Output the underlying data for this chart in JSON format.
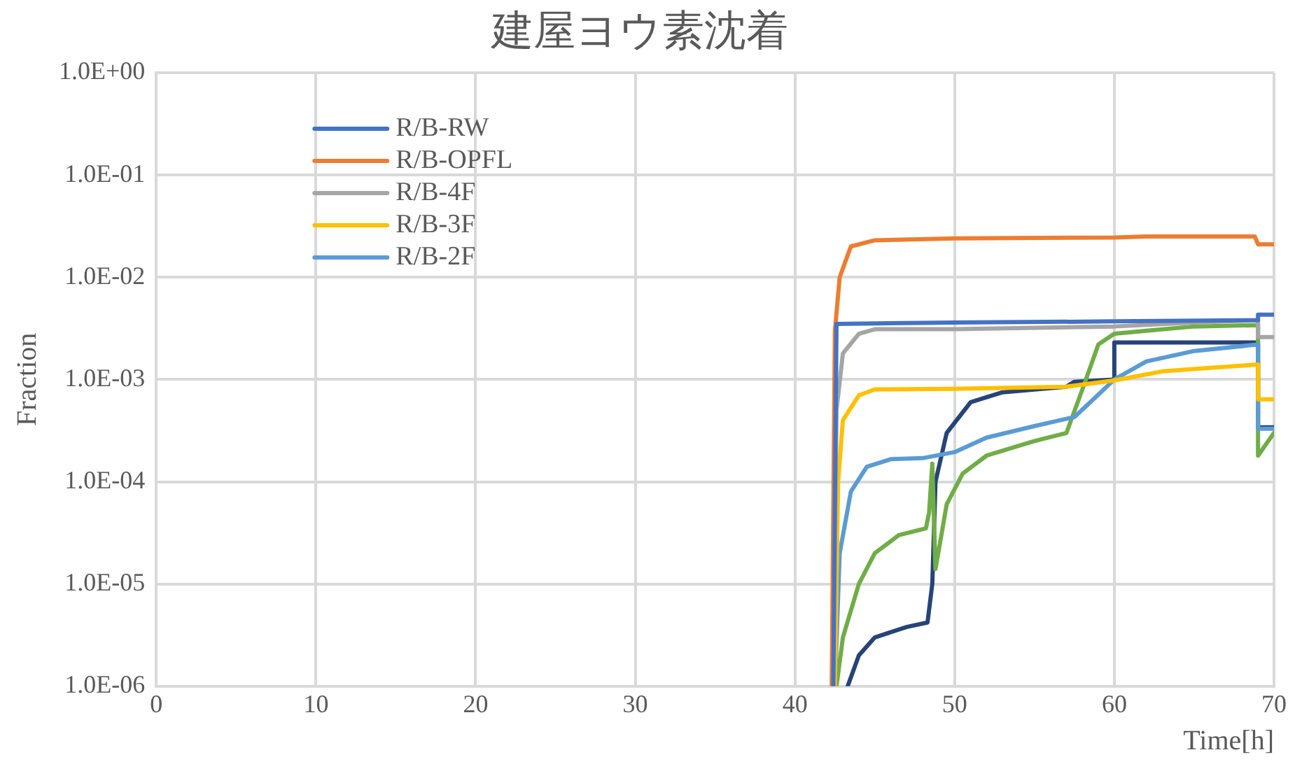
{
  "chart_data": {
    "type": "line",
    "title": "建屋ヨウ素沈着",
    "xlabel": "Time[h]",
    "ylabel": "Fraction",
    "log": "y",
    "grid": true,
    "legend": "top left",
    "marker": "none",
    "line_style": "solid",
    "xlim": [
      0,
      70
    ],
    "xticks": [
      0,
      10,
      20,
      30,
      40,
      50,
      60,
      70
    ],
    "ylim": [
      1e-06,
      1
    ],
    "yticks": [
      {
        "value": 1e-06,
        "label": "1.0E-06"
      },
      {
        "value": 1e-05,
        "label": "1.0E-05"
      },
      {
        "value": 0.0001,
        "label": "1.0E-04"
      },
      {
        "value": 0.001,
        "label": "1.0E-03"
      },
      {
        "value": 0.01,
        "label": "1.0E-02"
      },
      {
        "value": 0.1,
        "label": "1.0E-01"
      },
      {
        "value": 1,
        "label": "1.0E+00"
      }
    ],
    "series": [
      {
        "name": "R/B-RW",
        "color": "#4472c4",
        "x": [
          42.4,
          42.6,
          50,
          60,
          69,
          69,
          70
        ],
        "values": [
          1e-06,
          0.0035,
          0.0036,
          0.0037,
          0.0038,
          0.0043,
          0.0043
        ]
      },
      {
        "name": "R/B-OPFL",
        "color": "#ed7d31",
        "x": [
          42.3,
          42.5,
          42.8,
          43.5,
          45,
          50,
          60,
          62,
          68.8,
          69,
          70
        ],
        "values": [
          1e-06,
          0.003,
          0.01,
          0.02,
          0.023,
          0.024,
          0.0245,
          0.025,
          0.025,
          0.021,
          0.021
        ]
      },
      {
        "name": "R/B-4F",
        "color": "#a5a5a5",
        "x": [
          42.4,
          42.6,
          43,
          44,
          45,
          50,
          60,
          65,
          69,
          69,
          70
        ],
        "values": [
          1e-06,
          0.0005,
          0.0018,
          0.0028,
          0.0031,
          0.0031,
          0.0033,
          0.0036,
          0.0038,
          0.0026,
          0.0026
        ]
      },
      {
        "name": "R/B-3F",
        "color": "#ffc000",
        "x": [
          42.5,
          42.7,
          43,
          44,
          45,
          50,
          57,
          60,
          63,
          66,
          69,
          69,
          70
        ],
        "values": [
          1e-06,
          0.0001,
          0.0004,
          0.0007,
          0.0008,
          0.00081,
          0.00085,
          0.00098,
          0.0012,
          0.0013,
          0.0014,
          0.00064,
          0.00064
        ]
      },
      {
        "name": "R/B-2F",
        "color": "#5b9bd5",
        "x": [
          42.5,
          42.8,
          43.5,
          44.5,
          46,
          48,
          50,
          52,
          55,
          57.5,
          58.5,
          60,
          62,
          65,
          69,
          69,
          70
        ],
        "values": [
          1e-06,
          2e-05,
          8e-05,
          0.00014,
          0.000166,
          0.00017,
          0.000195,
          0.00027,
          0.00035,
          0.00043,
          0.0006,
          0.001,
          0.0015,
          0.0019,
          0.0022,
          0.00033,
          0.00033
        ]
      },
      {
        "color": "#70ad47",
        "x": [
          42.6,
          43,
          44,
          45,
          46.5,
          48.2,
          48.4,
          48.6,
          48.8,
          49.5,
          50.5,
          52,
          55,
          57,
          58,
          59,
          60,
          62,
          65,
          69,
          69,
          70
        ],
        "values": [
          1e-06,
          3e-06,
          1e-05,
          2e-05,
          3e-05,
          3.5e-05,
          5e-05,
          0.00015,
          1.4e-05,
          6e-05,
          0.00012,
          0.00018,
          0.00025,
          0.0003,
          0.0008,
          0.0022,
          0.0028,
          0.003,
          0.0033,
          0.0034,
          0.00018,
          0.0003
        ]
      },
      {
        "color": "#264478",
        "x": [
          43.3,
          44,
          45,
          47,
          48.3,
          48.6,
          48.8,
          49.5,
          51,
          53,
          57,
          57.5,
          60,
          60,
          69,
          69,
          70
        ],
        "values": [
          1e-06,
          2e-06,
          3e-06,
          3.8e-06,
          4.2e-06,
          1e-05,
          0.0001,
          0.0003,
          0.0006,
          0.00075,
          0.00085,
          0.00095,
          0.001,
          0.0023,
          0.0023,
          0.00034,
          0.00034
        ]
      }
    ]
  }
}
